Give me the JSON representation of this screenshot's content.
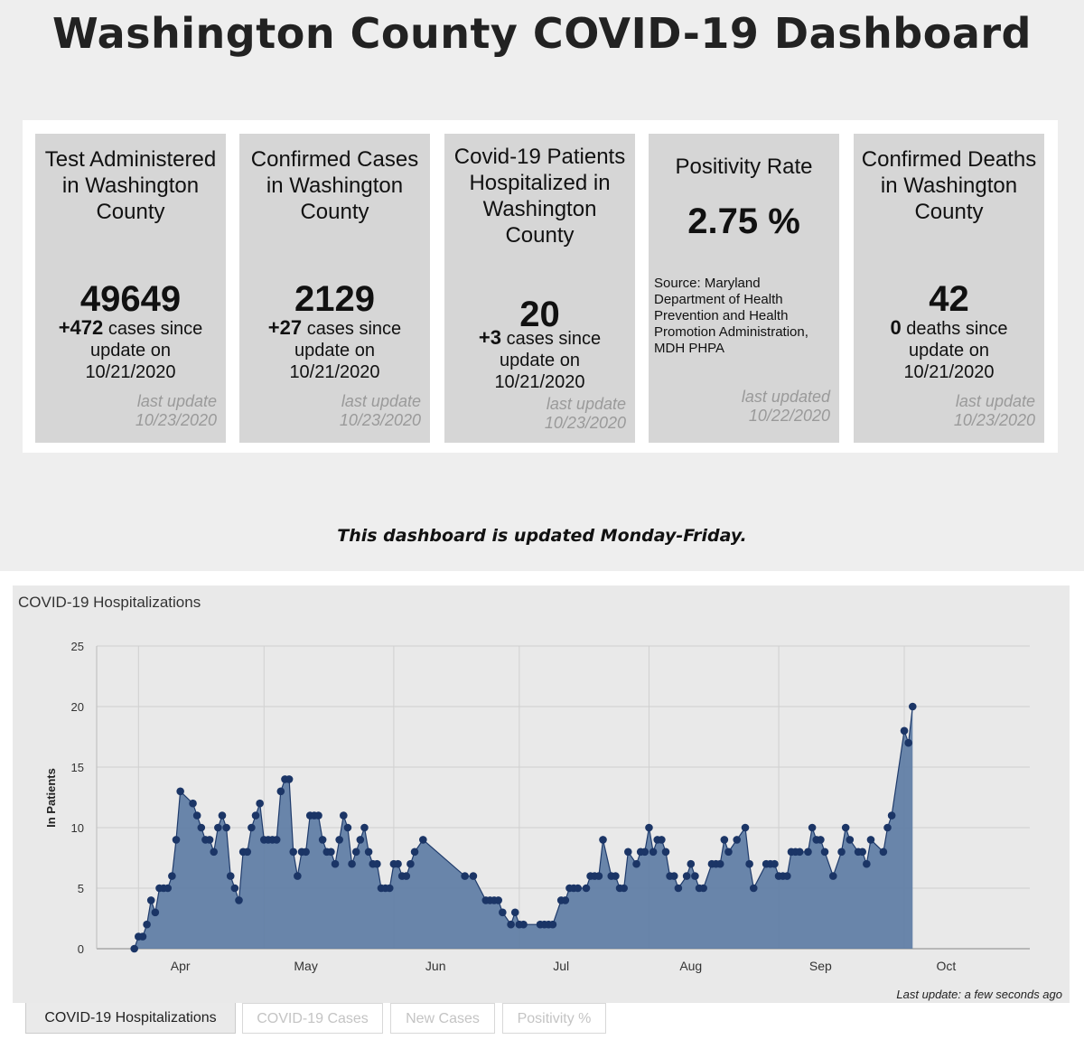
{
  "title": "Washington County COVID-19 Dashboard",
  "cards": [
    {
      "heading": "Test Administered in Washington County",
      "value": "49649",
      "delta": "+472",
      "delta_text": "cases since update on 10/21/2020",
      "last_update": "last update 10/23/2020"
    },
    {
      "heading": "Confirmed Cases in Washington County",
      "value": "2129",
      "delta": "+27",
      "delta_text": "cases since update on 10/21/2020",
      "last_update": "last update 10/23/2020"
    },
    {
      "heading": "Covid-19 Patients Hospitalized in Washington County",
      "value": "20",
      "delta": "+3",
      "delta_text": "cases since update on 10/21/2020",
      "last_update": "last update 10/23/2020"
    },
    {
      "heading": "Positivity Rate",
      "value": "2.75 %",
      "source": "Source: Maryland Department of Health Prevention and Health Promotion Administration, MDH PHPA",
      "last_update": "last updated 10/22/2020"
    },
    {
      "heading": "Confirmed Deaths in Washington County",
      "value": "42",
      "delta": "0",
      "delta_text": "deaths since update on 10/21/2020",
      "last_update": "last update 10/23/2020"
    }
  ],
  "notice": "This dashboard is updated Monday-Friday.",
  "chart_note": "Last update: a few seconds ago",
  "tabs": [
    {
      "label": "COVID-19 Hospitalizations"
    },
    {
      "label": "COVID-19 Cases"
    },
    {
      "label": "New Cases"
    },
    {
      "label": "Positivity %"
    }
  ],
  "colors": {
    "area_fill": "#5b7aa3",
    "line": "#1f3b6b",
    "point": "#1b3566"
  },
  "chart_data": {
    "type": "area",
    "title": "COVID-19 Hospitalizations",
    "ylabel": "In Patients",
    "xlabel": "",
    "ylim": [
      0,
      25
    ],
    "yticks": [
      0,
      5,
      10,
      15,
      20,
      25
    ],
    "xdomain": [
      0,
      223
    ],
    "xticks": [
      {
        "label": "Apr",
        "day": 20
      },
      {
        "label": "May",
        "day": 50
      },
      {
        "label": "Jun",
        "day": 81
      },
      {
        "label": "Jul",
        "day": 111
      },
      {
        "label": "Aug",
        "day": 142
      },
      {
        "label": "Sep",
        "day": 173
      },
      {
        "label": "Oct",
        "day": 203
      }
    ],
    "grid_days": [
      10,
      40,
      71,
      101,
      132,
      163,
      193
    ],
    "series": [
      {
        "name": "In Patients",
        "points": [
          [
            9,
            0
          ],
          [
            10,
            1
          ],
          [
            11,
            1
          ],
          [
            12,
            2
          ],
          [
            13,
            4
          ],
          [
            14,
            3
          ],
          [
            15,
            5
          ],
          [
            16,
            5
          ],
          [
            17,
            5
          ],
          [
            18,
            6
          ],
          [
            19,
            9
          ],
          [
            20,
            13
          ],
          [
            23,
            12
          ],
          [
            24,
            11
          ],
          [
            25,
            10
          ],
          [
            26,
            9
          ],
          [
            27,
            9
          ],
          [
            28,
            8
          ],
          [
            29,
            10
          ],
          [
            30,
            11
          ],
          [
            31,
            10
          ],
          [
            32,
            6
          ],
          [
            33,
            5
          ],
          [
            34,
            4
          ],
          [
            35,
            8
          ],
          [
            36,
            8
          ],
          [
            37,
            10
          ],
          [
            38,
            11
          ],
          [
            39,
            12
          ],
          [
            40,
            9
          ],
          [
            41,
            9
          ],
          [
            42,
            9
          ],
          [
            43,
            9
          ],
          [
            44,
            13
          ],
          [
            45,
            14
          ],
          [
            46,
            14
          ],
          [
            47,
            8
          ],
          [
            48,
            6
          ],
          [
            49,
            8
          ],
          [
            50,
            8
          ],
          [
            51,
            11
          ],
          [
            52,
            11
          ],
          [
            53,
            11
          ],
          [
            54,
            9
          ],
          [
            55,
            8
          ],
          [
            56,
            8
          ],
          [
            57,
            7
          ],
          [
            58,
            9
          ],
          [
            59,
            11
          ],
          [
            60,
            10
          ],
          [
            61,
            7
          ],
          [
            62,
            8
          ],
          [
            63,
            9
          ],
          [
            64,
            10
          ],
          [
            65,
            8
          ],
          [
            66,
            7
          ],
          [
            67,
            7
          ],
          [
            68,
            5
          ],
          [
            69,
            5
          ],
          [
            70,
            5
          ],
          [
            71,
            7
          ],
          [
            72,
            7
          ],
          [
            73,
            6
          ],
          [
            74,
            6
          ],
          [
            75,
            7
          ],
          [
            76,
            8
          ],
          [
            78,
            9
          ],
          [
            88,
            6
          ],
          [
            90,
            6
          ],
          [
            93,
            4
          ],
          [
            94,
            4
          ],
          [
            95,
            4
          ],
          [
            96,
            4
          ],
          [
            97,
            3
          ],
          [
            99,
            2
          ],
          [
            100,
            3
          ],
          [
            101,
            2
          ],
          [
            102,
            2
          ],
          [
            106,
            2
          ],
          [
            107,
            2
          ],
          [
            108,
            2
          ],
          [
            109,
            2
          ],
          [
            111,
            4
          ],
          [
            112,
            4
          ],
          [
            113,
            5
          ],
          [
            114,
            5
          ],
          [
            115,
            5
          ],
          [
            117,
            5
          ],
          [
            118,
            6
          ],
          [
            119,
            6
          ],
          [
            120,
            6
          ],
          [
            121,
            9
          ],
          [
            123,
            6
          ],
          [
            124,
            6
          ],
          [
            125,
            5
          ],
          [
            126,
            5
          ],
          [
            127,
            8
          ],
          [
            129,
            7
          ],
          [
            130,
            8
          ],
          [
            131,
            8
          ],
          [
            132,
            10
          ],
          [
            133,
            8
          ],
          [
            134,
            9
          ],
          [
            135,
            9
          ],
          [
            136,
            8
          ],
          [
            137,
            6
          ],
          [
            138,
            6
          ],
          [
            139,
            5
          ],
          [
            141,
            6
          ],
          [
            142,
            7
          ],
          [
            143,
            6
          ],
          [
            144,
            5
          ],
          [
            145,
            5
          ],
          [
            147,
            7
          ],
          [
            148,
            7
          ],
          [
            149,
            7
          ],
          [
            150,
            9
          ],
          [
            151,
            8
          ],
          [
            153,
            9
          ],
          [
            155,
            10
          ],
          [
            156,
            7
          ],
          [
            157,
            5
          ],
          [
            160,
            7
          ],
          [
            161,
            7
          ],
          [
            162,
            7
          ],
          [
            163,
            6
          ],
          [
            164,
            6
          ],
          [
            165,
            6
          ],
          [
            166,
            8
          ],
          [
            167,
            8
          ],
          [
            168,
            8
          ],
          [
            170,
            8
          ],
          [
            171,
            10
          ],
          [
            172,
            9
          ],
          [
            173,
            9
          ],
          [
            174,
            8
          ],
          [
            176,
            6
          ],
          [
            178,
            8
          ],
          [
            179,
            10
          ],
          [
            180,
            9
          ],
          [
            182,
            8
          ],
          [
            183,
            8
          ],
          [
            184,
            7
          ],
          [
            185,
            9
          ],
          [
            188,
            8
          ],
          [
            189,
            10
          ],
          [
            190,
            11
          ],
          [
            193,
            18
          ],
          [
            194,
            17
          ],
          [
            195,
            20
          ]
        ]
      }
    ]
  }
}
